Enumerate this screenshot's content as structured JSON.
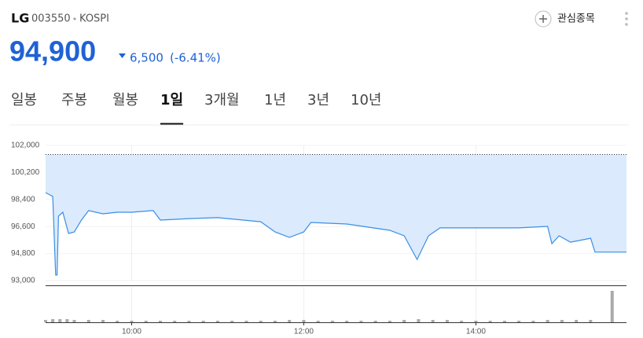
{
  "header": {
    "name": "LG",
    "code": "003550",
    "market": "KOSPI",
    "watch_button": "관심종목"
  },
  "quote": {
    "price": "94,900",
    "change": "6,500",
    "change_rate": "(-6.41%)"
  },
  "tabs": {
    "items": [
      "일봉",
      "주봉",
      "월봉",
      "1일",
      "3개월",
      "1년",
      "3년",
      "10년"
    ],
    "active": 3
  },
  "chart_data": [
    {
      "type": "line",
      "x": [
        "09:00",
        "09:05",
        "09:07",
        "09:08",
        "09:09",
        "09:12",
        "09:16",
        "09:20",
        "09:25",
        "09:30",
        "09:40",
        "09:50",
        "10:00",
        "10:15",
        "10:20",
        "10:40",
        "11:00",
        "11:30",
        "11:40",
        "11:50",
        "12:00",
        "12:05",
        "12:30",
        "13:00",
        "13:10",
        "13:19",
        "13:27",
        "13:35",
        "13:57",
        "14:30",
        "14:50",
        "14:53",
        "14:58",
        "15:06",
        "15:20",
        "15:23",
        "15:45"
      ],
      "series": [
        {
          "name": "price",
          "color": "#3a8ee6",
          "fill": "#dbeafc",
          "values": [
            98860,
            98600,
            93370,
            93370,
            97290,
            97550,
            96140,
            96240,
            97030,
            97660,
            97450,
            97550,
            97550,
            97660,
            97030,
            97130,
            97190,
            96920,
            96240,
            95880,
            96240,
            96870,
            96770,
            96350,
            95980,
            94410,
            95980,
            96510,
            96510,
            96510,
            96610,
            95460,
            95980,
            95560,
            95820,
            94900,
            94900
          ]
        }
      ],
      "reference_line": 101400,
      "xlim": [
        "09:00",
        "15:45"
      ],
      "xticks": [
        "10:00",
        "12:00",
        "14:00"
      ],
      "ylim": [
        93000,
        102000
      ],
      "yticks": [
        {
          "value": 93000,
          "label": "93,000"
        },
        {
          "value": 94800,
          "label": "94,800"
        },
        {
          "value": 96600,
          "label": "96,600"
        },
        {
          "value": 98400,
          "label": "98,400"
        },
        {
          "value": 100200,
          "label": "100,200"
        },
        {
          "value": 102000,
          "label": "102,000"
        }
      ],
      "grid": true
    },
    {
      "type": "bar",
      "color": "#aaaaaa",
      "x": [
        "09:00",
        "09:05",
        "09:10",
        "09:15",
        "09:20",
        "09:30",
        "09:40",
        "09:50",
        "10:00",
        "10:10",
        "10:20",
        "10:30",
        "10:40",
        "10:50",
        "11:00",
        "11:10",
        "11:20",
        "11:30",
        "11:40",
        "11:50",
        "12:00",
        "12:10",
        "12:20",
        "12:30",
        "12:40",
        "12:50",
        "13:00",
        "13:10",
        "13:20",
        "13:30",
        "13:40",
        "13:50",
        "14:00",
        "14:10",
        "14:20",
        "14:30",
        "14:40",
        "14:50",
        "15:00",
        "15:10",
        "15:20",
        "15:35"
      ],
      "values": [
        3,
        4,
        4,
        4,
        3,
        3,
        3,
        2,
        2,
        2,
        2,
        2,
        2,
        2,
        2,
        2,
        2,
        2,
        2,
        3,
        3,
        2,
        2,
        2,
        2,
        2,
        2,
        3,
        4,
        3,
        3,
        2,
        2,
        2,
        2,
        2,
        2,
        3,
        3,
        3,
        3,
        40
      ],
      "xlim": [
        "09:00",
        "15:45"
      ],
      "xticks": [
        "10:00",
        "12:00",
        "14:00"
      ],
      "ylim": [
        0,
        45
      ]
    }
  ]
}
